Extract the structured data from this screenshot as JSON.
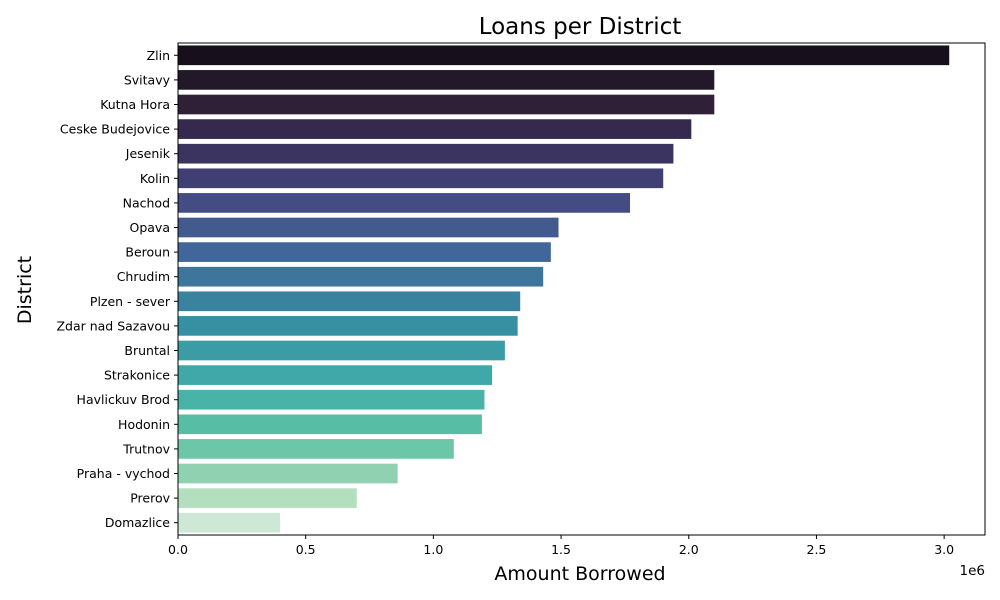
{
  "chart_data": {
    "type": "bar",
    "orientation": "horizontal",
    "title": "Loans per District",
    "xlabel": "Amount Borrowed",
    "ylabel": "District",
    "x_offset_label": "1e6",
    "xlim": [
      0,
      3.16
    ],
    "x_ticks": [
      0.0,
      0.5,
      1.0,
      1.5,
      2.0,
      2.5,
      3.0
    ],
    "x_tick_labels": [
      "0.0",
      "0.5",
      "1.0",
      "1.5",
      "2.0",
      "2.5",
      "3.0"
    ],
    "grid": false,
    "categories": [
      "Zlin",
      "Svitavy",
      "Kutna Hora",
      "Ceske Budejovice",
      "Jesenik",
      "Kolin",
      "Nachod",
      "Opava",
      "Beroun",
      "Chrudim",
      "Plzen - sever",
      "Zdar nad Sazavou",
      "Bruntal",
      "Strakonice",
      "Havlickuv Brod",
      "Hodonin",
      "Trutnov",
      "Praha - vychod",
      "Prerov",
      "Domazlice"
    ],
    "values": [
      3.02,
      2.1,
      2.1,
      2.01,
      1.94,
      1.9,
      1.77,
      1.49,
      1.46,
      1.43,
      1.34,
      1.33,
      1.28,
      1.23,
      1.2,
      1.19,
      1.08,
      0.86,
      0.7,
      0.4
    ],
    "colors": [
      "#180f1c",
      "#231829",
      "#2f2037",
      "#352a4d",
      "#3b3461",
      "#403f73",
      "#434c83",
      "#435a8f",
      "#41679a",
      "#3d759d",
      "#3a839f",
      "#378fa2",
      "#3b9ca5",
      "#40a8a8",
      "#4ab3a8",
      "#57bda5",
      "#6cc7a9",
      "#8fd1b1",
      "#b3dfbe",
      "#cde8d6"
    ]
  }
}
